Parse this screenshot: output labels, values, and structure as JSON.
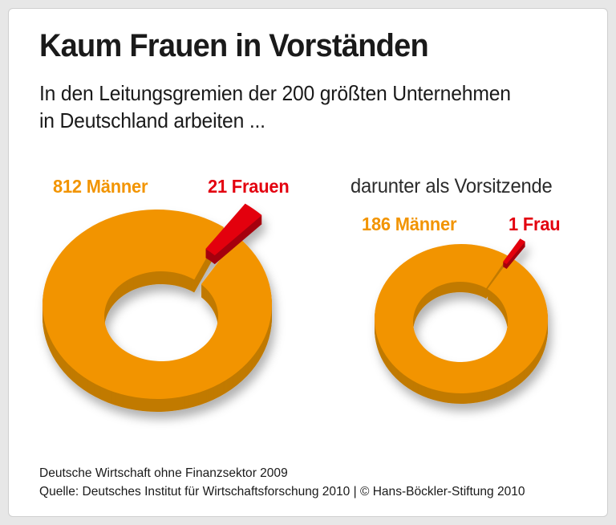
{
  "header": {
    "title": "Kaum Frauen in Vorständen",
    "subtitle_lines": [
      "In den Leitungsgremien der 200 größten Unternehmen",
      "in Deutschland arbeiten ..."
    ]
  },
  "chart_data": [
    {
      "type": "pie",
      "style": "3d-exploded-donut",
      "title": "",
      "segments": [
        {
          "label": "812 Männer",
          "value": 812,
          "color": "#F29400"
        },
        {
          "label": "21 Frauen",
          "value": 21,
          "color": "#E3000F",
          "exploded": true
        }
      ],
      "total": 833,
      "legend_position": "top"
    },
    {
      "type": "pie",
      "style": "3d-exploded-donut",
      "title": "darunter als Vorsitzende",
      "segments": [
        {
          "label": "186 Männer",
          "value": 186,
          "color": "#F29400"
        },
        {
          "label": "1 Frau",
          "value": 1,
          "color": "#E3000F",
          "exploded": true
        }
      ],
      "total": 187,
      "legend_position": "top"
    }
  ],
  "footer": {
    "note": "Deutsche Wirtschaft ohne Finanzsektor 2009",
    "source": "Quelle: Deutsches Institut für Wirtschaftsforschung 2010 | © Hans-Böckler-Stiftung 2010"
  },
  "colors": {
    "male_orange": "#F29400",
    "female_red": "#E3000F",
    "orange_depth": "#C17A06",
    "red_depth": "#A50209",
    "text": "#1A1A1A",
    "muted_text": "#2B2B2B",
    "frame_background": "#E7E7E7",
    "card_border": "#CFCFCF"
  }
}
